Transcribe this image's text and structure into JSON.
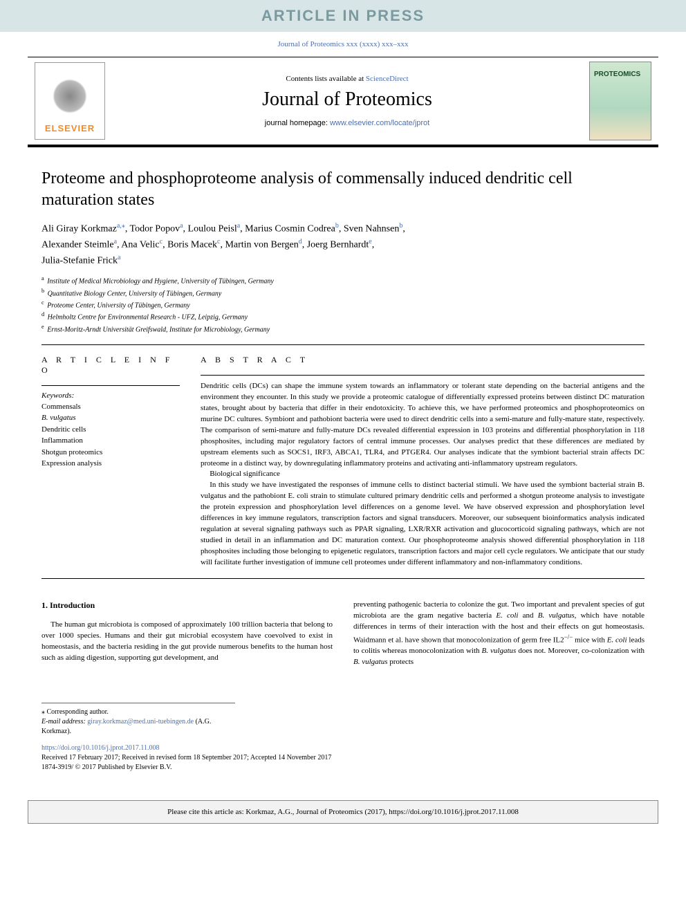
{
  "banner": "ARTICLE IN PRESS",
  "journal_ref": "Journal of Proteomics xxx (xxxx) xxx–xxx",
  "header": {
    "contents_prefix": "Contents lists available at ",
    "contents_link": "ScienceDirect",
    "journal_name": "Journal of Proteomics",
    "homepage_prefix": "journal homepage: ",
    "homepage_link": "www.elsevier.com/locate/jprot",
    "elsevier_label": "ELSEVIER",
    "cover_label": "PROTEOMICS"
  },
  "title": "Proteome and phosphoproteome analysis of commensally induced dendritic cell maturation states",
  "authors_line1_parts": [
    {
      "name": "Ali Giray Korkmaz",
      "sup": "a,",
      "corr": "⁎"
    },
    {
      "name": ", Todor Popov",
      "sup": "a"
    },
    {
      "name": ", Loulou Peisl",
      "sup": "a"
    },
    {
      "name": ", Marius Cosmin Codrea",
      "sup": "b"
    },
    {
      "name": ", Sven Nahnsen",
      "sup": "b"
    },
    {
      "name": ","
    }
  ],
  "authors_line2_parts": [
    {
      "name": "Alexander Steimle",
      "sup": "a"
    },
    {
      "name": ", Ana Velic",
      "sup": "c"
    },
    {
      "name": ", Boris Macek",
      "sup": "c"
    },
    {
      "name": ", Martin von Bergen",
      "sup": "d"
    },
    {
      "name": ", Joerg Bernhardt",
      "sup": "e"
    },
    {
      "name": ","
    }
  ],
  "authors_line3_parts": [
    {
      "name": "Julia-Stefanie Frick",
      "sup": "a"
    }
  ],
  "affiliations": [
    {
      "sup": "a",
      "text": "Institute of Medical Microbiology and Hygiene, University of Tübingen, Germany"
    },
    {
      "sup": "b",
      "text": "Quantitative Biology Center, University of Tübingen, Germany"
    },
    {
      "sup": "c",
      "text": "Proteome Center, University of Tübingen, Germany"
    },
    {
      "sup": "d",
      "text": "Helmholtz Centre for Environmental Research - UFZ, Leipzig, Germany"
    },
    {
      "sup": "e",
      "text": "Ernst-Moritz-Arndt Universität Greifswald, Institute for Microbiology, Germany"
    }
  ],
  "info_label": "A R T I C L E  I N F O",
  "abstract_label": "A B S T R A C T",
  "keywords_label": "Keywords:",
  "keywords": [
    "Commensals",
    "B. vulgatus",
    "Dendritic cells",
    "Inflammation",
    "Shotgun proteomics",
    "Expression analysis"
  ],
  "abstract_p1": "Dendritic cells (DCs) can shape the immune system towards an inflammatory or tolerant state depending on the bacterial antigens and the environment they encounter. In this study we provide a proteomic catalogue of differentially expressed proteins between distinct DC maturation states, brought about by bacteria that differ in their endotoxicity. To achieve this, we have performed proteomics and phosphoproteomics on murine DC cultures. Symbiont and pathobiont bacteria were used to direct dendritic cells into a semi-mature and fully-mature state, respectively. The comparison of semi-mature and fully-mature DCs revealed differential expression in 103 proteins and differential phosphorylation in 118 phosphosites, including major regulatory factors of central immune processes. Our analyses predict that these differences are mediated by upstream elements such as SOCS1, IRF3, ABCA1, TLR4, and PTGER4. Our analyses indicate that the symbiont bacterial strain affects DC proteome in a distinct way, by downregulating inflammatory proteins and activating anti-inflammatory upstream regulators.",
  "abstract_sig_label": "Biological significance",
  "abstract_p2": "In this study we have investigated the responses of immune cells to distinct bacterial stimuli. We have used the symbiont bacterial strain B. vulgatus and the pathobiont E. coli strain to stimulate cultured primary dendritic cells and performed a shotgun proteome analysis to investigate the protein expression and phosphorylation level differences on a genome level. We have observed expression and phosphorylation level differences in key immune regulators, transcription factors and signal transducers. Moreover, our subsequent bioinformatics analysis indicated regulation at several signaling pathways such as PPAR signaling, LXR/RXR activation and glucocorticoid signaling pathways, which are not studied in detail in an inflammation and DC maturation context. Our phosphoproteome analysis showed differential phosphorylation in 118 phosphosites including those belonging to epigenetic regulators, transcription factors and major cell cycle regulators. We anticipate that our study will facilitate further investigation of immune cell proteomes under different inflammatory and non-inflammatory conditions.",
  "intro_heading": "1. Introduction",
  "intro_col1": "The human gut microbiota is composed of approximately 100 trillion bacteria that belong to over 1000 species. Humans and their gut microbial ecosystem have coevolved to exist in homeostasis, and the bacteria residing in the gut provide numerous benefits to the human host such as aiding digestion, supporting gut development, and",
  "intro_col2_a": "preventing pathogenic bacteria to colonize the gut. Two important and prevalent species of gut microbiota are the gram negative bacteria ",
  "intro_col2_b": "E. coli",
  "intro_col2_c": " and ",
  "intro_col2_d": "B. vulgatus",
  "intro_col2_e": ", which have notable differences in terms of their interaction with the host and their effects on gut homeostasis. Waidmann et al. have shown that monocolonization of germ free IL2",
  "intro_col2_sup": "−/−",
  "intro_col2_f": " mice with ",
  "intro_col2_g": "E. coli",
  "intro_col2_h": " leads to colitis whereas monocolonization with ",
  "intro_col2_i": "B. vulgatus",
  "intro_col2_j": " does not. Moreover, co-colonization with ",
  "intro_col2_k": "B. vulgatus",
  "intro_col2_l": " protects",
  "footnote_corr_label": "⁎ Corresponding author.",
  "footnote_email_label": "E-mail address: ",
  "footnote_email": "giray.korkmaz@med.uni-tuebingen.de",
  "footnote_email_suffix": " (A.G. Korkmaz).",
  "doi_link": "https://doi.org/10.1016/j.jprot.2017.11.008",
  "received_line": "Received 17 February 2017; Received in revised form 18 September 2017; Accepted 14 November 2017",
  "copyright_line": "1874-3919/ © 2017 Published by Elsevier B.V.",
  "cite_box": "Please cite this article as: Korkmaz, A.G., Journal of Proteomics (2017), https://doi.org/10.1016/j.jprot.2017.11.008",
  "colors": {
    "banner_bg": "#d8e5e7",
    "banner_fg": "#7a9aa0",
    "link": "#4a6fb0",
    "elsevier_orange": "#f28c28",
    "cite_bg": "#f2f2f2",
    "title_fontsize": 24,
    "journal_fontsize": 28,
    "body_fontsize": 11
  }
}
